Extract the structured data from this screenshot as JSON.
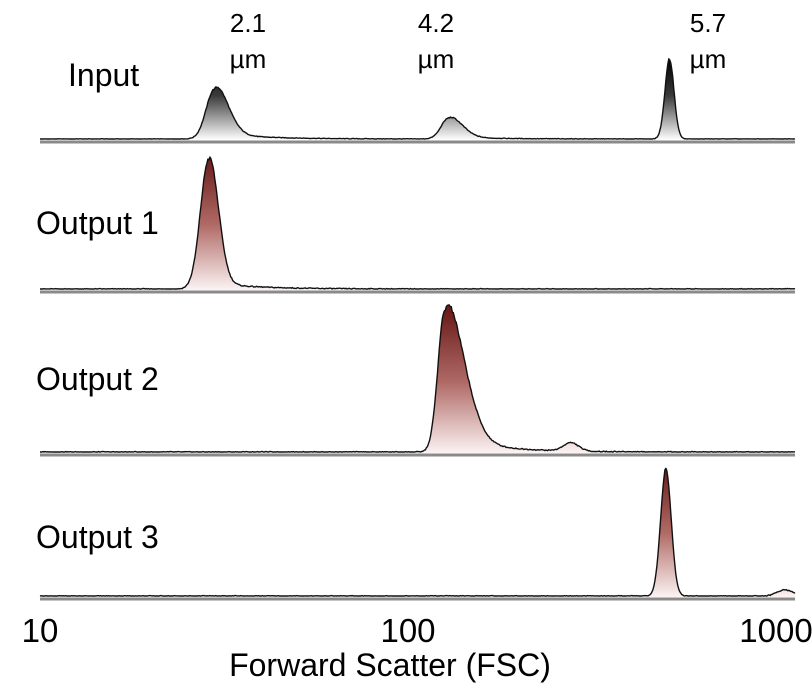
{
  "chart_data": {
    "type": "area",
    "xlabel": "Forward Scatter (FSC)",
    "xscale": "log",
    "xlim": [
      10,
      1000
    ],
    "xticks": [
      "10",
      "100",
      "1000"
    ],
    "grid": false,
    "peak_labels": [
      {
        "line1": "2.1",
        "line2": "µm",
        "x": 28
      },
      {
        "line1": "4.2",
        "line2": "µm",
        "x": 118
      },
      {
        "line1": "5.7",
        "line2": "µm",
        "x": 465
      }
    ],
    "series": [
      {
        "name": "Input",
        "fill": "gray",
        "peaks": [
          {
            "center": 29,
            "height": 1.0,
            "width_left": 0.022,
            "width_right": 0.035,
            "tail": 0.12
          },
          {
            "center": 121,
            "height": 0.42,
            "width_left": 0.02,
            "width_right": 0.035,
            "tail": 0.1
          },
          {
            "center": 465,
            "height": 1.6,
            "width_left": 0.012,
            "width_right": 0.012,
            "tail": 0.0
          }
        ]
      },
      {
        "name": "Output 1",
        "fill": "red",
        "peaks": [
          {
            "center": 28,
            "height": 1.0,
            "width_left": 0.022,
            "width_right": 0.025,
            "tail": 0.05
          }
        ]
      },
      {
        "name": "Output 2",
        "fill": "red",
        "peaks": [
          {
            "center": 118,
            "height": 1.0,
            "width_left": 0.018,
            "width_right": 0.05,
            "tail": 0.12
          },
          {
            "center": 255,
            "height": 0.06,
            "width_left": 0.02,
            "width_right": 0.02,
            "tail": 0.0
          }
        ]
      },
      {
        "name": "Output 3",
        "fill": "red",
        "peaks": [
          {
            "center": 455,
            "height": 1.0,
            "width_left": 0.014,
            "width_right": 0.014,
            "tail": 0.0
          },
          {
            "center": 940,
            "height": 0.05,
            "width_left": 0.02,
            "width_right": 0.02,
            "tail": 0.0
          }
        ]
      }
    ]
  }
}
